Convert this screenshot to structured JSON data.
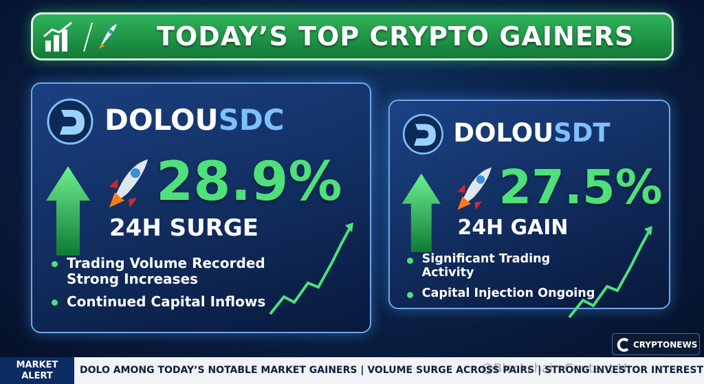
{
  "header": {
    "title": "TODAY’S TOP CRYPTO GAINERS"
  },
  "cards": [
    {
      "name": "DOLOU",
      "name_suffix": "SDC",
      "change": "28.9%",
      "label": "24H SURGE",
      "bullets": [
        "Trading Volume Recorded Strong Increases",
        "Continued Capital Inflows"
      ]
    },
    {
      "name": "DOLOU",
      "name_suffix": "SDT",
      "change": "27.5%",
      "label": "24H GAIN",
      "bullets": [
        "Significant Trading Activity",
        "Capital Injection Ongoing"
      ]
    }
  ],
  "brand": "CRYPTONEWS",
  "ticker": {
    "tag": "MARKET ALERT",
    "text": "DOLO AMONG TODAY’S NOTABLE MARKET GAINERS | VOLUME SURGE ACROSS PAIRS | STRONG INVESTOR INTEREST"
  },
  "watermark": "@Blockchain Content H"
}
